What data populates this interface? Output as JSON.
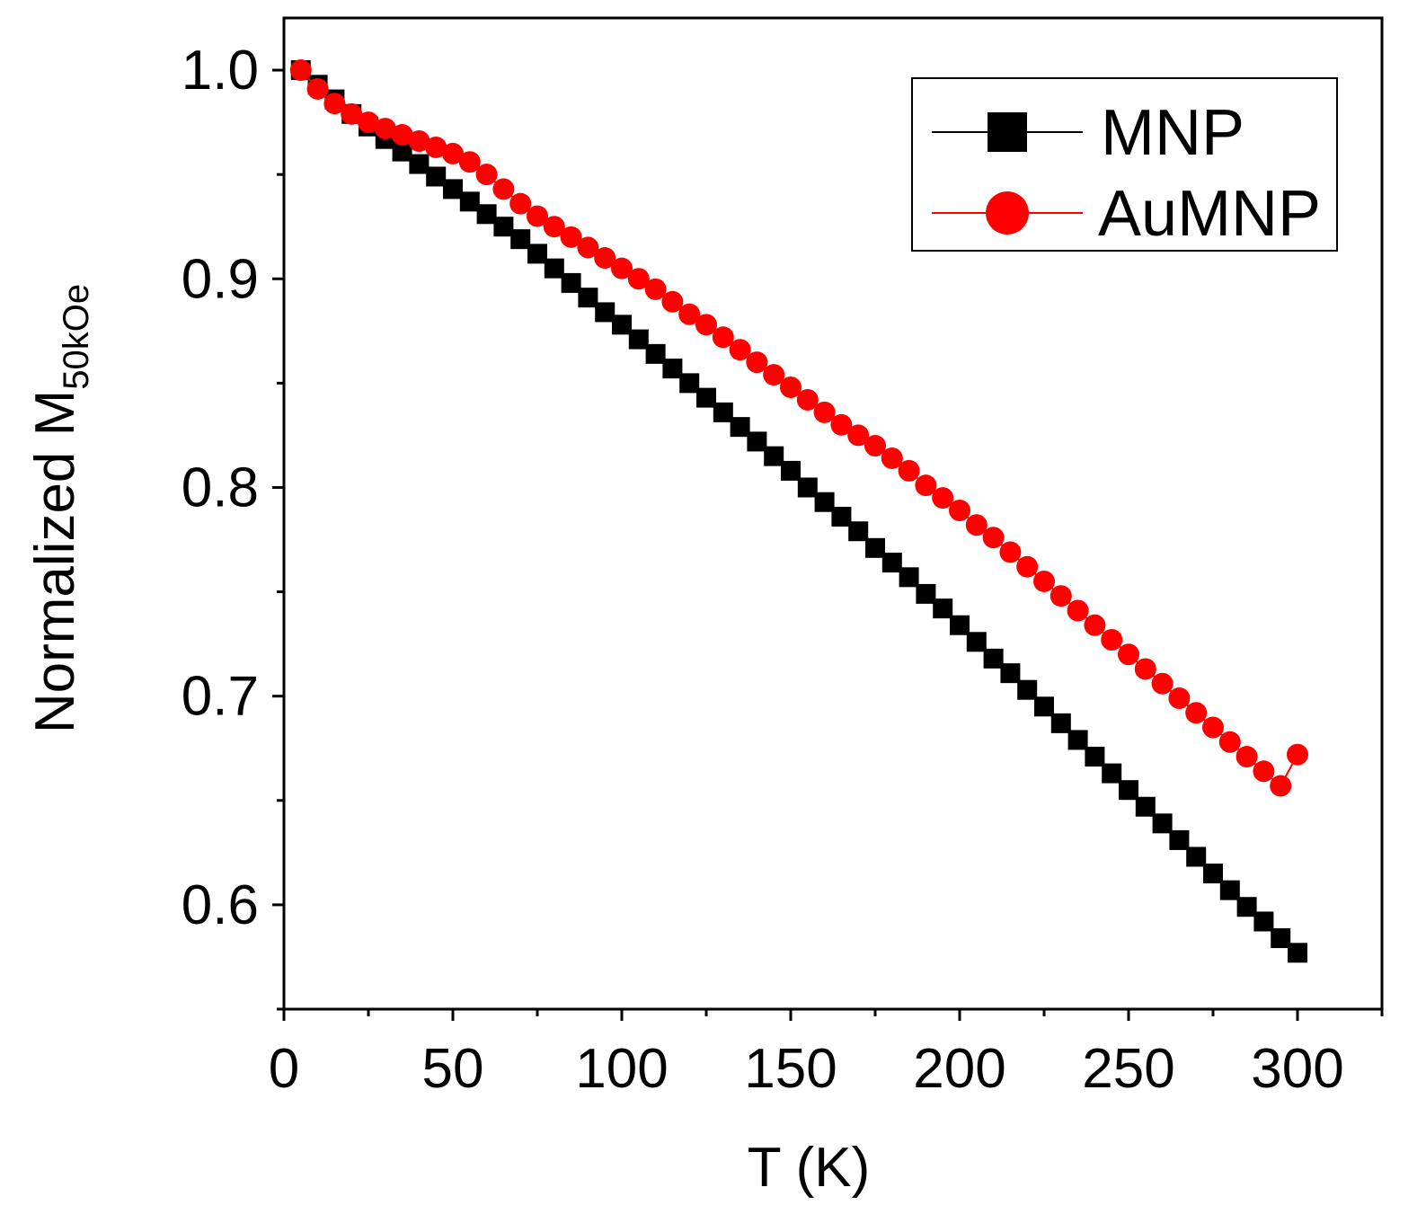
{
  "chart_data": {
    "type": "scatter",
    "xlabel": "T (K)",
    "ylabel": "Normalized M",
    "ylabel_subscript": "50kOe",
    "xlim": [
      0,
      325
    ],
    "ylim": [
      0.55,
      1.025
    ],
    "x_ticks": [
      0,
      50,
      100,
      150,
      200,
      250,
      300
    ],
    "x_tick_labels": [
      "0",
      "50",
      "100",
      "150",
      "200",
      "250",
      "300"
    ],
    "x_minor_ticks": [
      25,
      75,
      125,
      175,
      225,
      275,
      325
    ],
    "y_ticks": [
      0.6,
      0.7,
      0.8,
      0.9,
      1.0
    ],
    "y_tick_labels": [
      "0.6",
      "0.7",
      "0.8",
      "0.9",
      "1.0"
    ],
    "y_minor_ticks": [
      0.55,
      0.65,
      0.75,
      0.85,
      0.95
    ],
    "grid": false,
    "legend_position": "top-right",
    "series": [
      {
        "name": "MNP",
        "marker": "square",
        "color": "#000000",
        "x": [
          5,
          10,
          15,
          20,
          25,
          30,
          35,
          40,
          45,
          50,
          55,
          60,
          65,
          70,
          75,
          80,
          85,
          90,
          95,
          100,
          105,
          110,
          115,
          120,
          125,
          130,
          135,
          140,
          145,
          150,
          155,
          160,
          165,
          170,
          175,
          180,
          185,
          190,
          195,
          200,
          205,
          210,
          215,
          220,
          225,
          230,
          235,
          240,
          245,
          250,
          255,
          260,
          265,
          270,
          275,
          280,
          285,
          290,
          295,
          300
        ],
        "values": [
          1.0,
          0.993,
          0.986,
          0.979,
          0.973,
          0.967,
          0.961,
          0.955,
          0.949,
          0.943,
          0.937,
          0.931,
          0.925,
          0.919,
          0.912,
          0.905,
          0.898,
          0.891,
          0.884,
          0.878,
          0.871,
          0.864,
          0.857,
          0.85,
          0.843,
          0.836,
          0.829,
          0.822,
          0.815,
          0.808,
          0.8,
          0.793,
          0.786,
          0.779,
          0.771,
          0.764,
          0.757,
          0.749,
          0.742,
          0.734,
          0.726,
          0.718,
          0.711,
          0.703,
          0.695,
          0.687,
          0.679,
          0.671,
          0.663,
          0.655,
          0.647,
          0.639,
          0.631,
          0.623,
          0.615,
          0.607,
          0.599,
          0.592,
          0.584,
          0.577
        ]
      },
      {
        "name": "AuMNP",
        "marker": "circle",
        "color": "#ff0000",
        "x": [
          5,
          10,
          15,
          20,
          25,
          30,
          35,
          40,
          45,
          50,
          55,
          60,
          65,
          70,
          75,
          80,
          85,
          90,
          95,
          100,
          105,
          110,
          115,
          120,
          125,
          130,
          135,
          140,
          145,
          150,
          155,
          160,
          165,
          170,
          175,
          180,
          185,
          190,
          195,
          200,
          205,
          210,
          215,
          220,
          225,
          230,
          235,
          240,
          245,
          250,
          255,
          260,
          265,
          270,
          275,
          280,
          285,
          290,
          295,
          300
        ],
        "values": [
          1.0,
          0.991,
          0.984,
          0.979,
          0.975,
          0.972,
          0.969,
          0.966,
          0.963,
          0.96,
          0.956,
          0.95,
          0.943,
          0.936,
          0.93,
          0.925,
          0.92,
          0.915,
          0.91,
          0.905,
          0.9,
          0.895,
          0.889,
          0.883,
          0.878,
          0.872,
          0.866,
          0.86,
          0.854,
          0.848,
          0.842,
          0.836,
          0.83,
          0.825,
          0.82,
          0.814,
          0.808,
          0.801,
          0.795,
          0.789,
          0.782,
          0.776,
          0.769,
          0.762,
          0.755,
          0.748,
          0.741,
          0.734,
          0.727,
          0.72,
          0.713,
          0.706,
          0.699,
          0.692,
          0.685,
          0.678,
          0.671,
          0.664,
          0.657,
          0.672
        ]
      }
    ]
  }
}
